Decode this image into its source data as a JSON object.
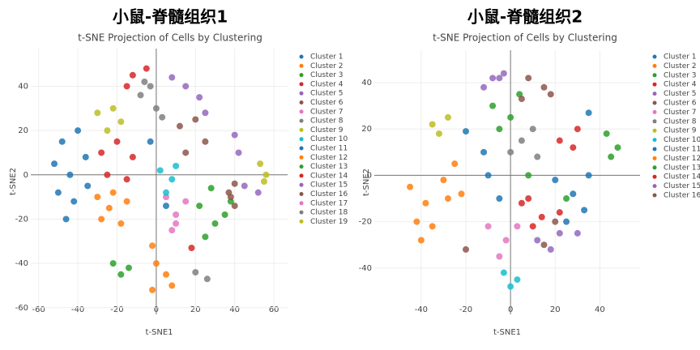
{
  "chart_data": [
    {
      "type": "scatter",
      "title": "小鼠-脊髓组织1",
      "subtitle": "t-SNE Projection of Cells by Clustering",
      "xlabel": "t-SNE1",
      "ylabel": "t-SNE2",
      "xlim": [
        -64,
        67
      ],
      "ylim": [
        -63,
        57
      ],
      "xticks": [
        -60,
        -40,
        -20,
        0,
        20,
        40,
        60
      ],
      "yticks": [
        -60,
        -40,
        -20,
        0,
        20,
        40
      ],
      "grid": true,
      "zeroline": true,
      "legend": "right",
      "series": [
        {
          "name": "Cluster 1",
          "color": "#1f77b4",
          "x": [
            -48,
            -40,
            -52,
            -44,
            -36,
            -50,
            -42,
            -35,
            -46
          ],
          "values": [
            15,
            20,
            5,
            0,
            8,
            -8,
            -12,
            -5,
            -20
          ]
        },
        {
          "name": "Cluster 2",
          "color": "#ff7f0e",
          "x": [
            -30,
            -22,
            -15,
            -28,
            -18,
            -24,
            0,
            5,
            -2,
            8
          ],
          "values": [
            -10,
            -8,
            -12,
            -20,
            -22,
            -15,
            -40,
            -45,
            -52,
            -50
          ]
        },
        {
          "name": "Cluster 3",
          "color": "#2ca02c",
          "x": [
            -22,
            -18,
            -14,
            30,
            25,
            35,
            38
          ],
          "values": [
            -40,
            -45,
            -42,
            -22,
            -28,
            -18,
            -12
          ]
        },
        {
          "name": "Cluster 4",
          "color": "#d62728",
          "x": [
            -28,
            -20,
            -12,
            -25,
            -15,
            -12,
            -5,
            -15
          ],
          "values": [
            10,
            15,
            8,
            0,
            -2,
            45,
            48,
            40
          ]
        },
        {
          "name": "Cluster 5",
          "color": "#9467bd",
          "x": [
            8,
            15,
            22,
            25,
            40,
            42,
            52
          ],
          "values": [
            44,
            40,
            35,
            28,
            18,
            10,
            -8
          ]
        },
        {
          "name": "Cluster 6",
          "color": "#8c564b",
          "x": [
            12,
            20,
            25,
            15,
            37,
            40
          ],
          "values": [
            22,
            25,
            15,
            10,
            -8,
            -14
          ]
        },
        {
          "name": "Cluster 7",
          "color": "#e377c2",
          "x": [
            5,
            10,
            8,
            15
          ],
          "values": [
            -10,
            -18,
            -25,
            -12
          ]
        },
        {
          "name": "Cluster 8",
          "color": "#7f7f7f",
          "x": [
            -8,
            0,
            -3,
            3,
            20,
            26
          ],
          "values": [
            36,
            30,
            40,
            26,
            -44,
            -47
          ]
        },
        {
          "name": "Cluster 9",
          "color": "#bcbd22",
          "x": [
            -30,
            -22,
            -25,
            -18
          ],
          "values": [
            28,
            30,
            20,
            24
          ]
        },
        {
          "name": "Cluster 10",
          "color": "#17becf",
          "x": [
            2,
            8,
            5,
            10
          ],
          "values": [
            2,
            -2,
            -8,
            4
          ]
        },
        {
          "name": "Cluster 11",
          "color": "#1f77b4",
          "x": [
            -3,
            5
          ],
          "values": [
            15,
            -14
          ]
        },
        {
          "name": "Cluster 12",
          "color": "#ff7f0e",
          "x": [
            -2
          ],
          "values": [
            -32
          ]
        },
        {
          "name": "Cluster 13",
          "color": "#2ca02c",
          "x": [
            22,
            28
          ],
          "values": [
            -14,
            -6
          ]
        },
        {
          "name": "Cluster 14",
          "color": "#d62728",
          "x": [
            18
          ],
          "values": [
            -33
          ]
        },
        {
          "name": "Cluster 15",
          "color": "#9467bd",
          "x": [
            45
          ],
          "values": [
            -5
          ]
        },
        {
          "name": "Cluster 16",
          "color": "#8c564b",
          "x": [
            38,
            40
          ],
          "values": [
            -10,
            -4
          ]
        },
        {
          "name": "Cluster 17",
          "color": "#e377c2",
          "x": [
            10
          ],
          "values": [
            -22
          ]
        },
        {
          "name": "Cluster 18",
          "color": "#7f7f7f",
          "x": [
            -6
          ],
          "values": [
            42
          ]
        },
        {
          "name": "Cluster 19",
          "color": "#bcbd22",
          "x": [
            53,
            56,
            55
          ],
          "values": [
            5,
            0,
            -3
          ]
        }
      ]
    },
    {
      "type": "scatter",
      "title": "小鼠-脊髓组织2",
      "subtitle": "t-SNE Projection of Cells by Clustering",
      "xlabel": "t-SNE1",
      "ylabel": "t-SNE2",
      "xlim": [
        -61,
        58
      ],
      "ylim": [
        -60,
        54
      ],
      "xticks": [
        -40,
        -20,
        0,
        20,
        40
      ],
      "yticks": [
        -40,
        -20,
        0,
        20,
        40
      ],
      "grid": true,
      "zeroline": true,
      "legend": "right",
      "series": [
        {
          "name": "Cluster 1",
          "color": "#1f77b4",
          "x": [
            20,
            28,
            33,
            25,
            35,
            -10,
            -5,
            -12
          ],
          "values": [
            -2,
            -8,
            -15,
            -20,
            0,
            0,
            -10,
            10
          ]
        },
        {
          "name": "Cluster 2",
          "color": "#ff7f0e",
          "x": [
            -45,
            -38,
            -30,
            -42,
            -35,
            -28,
            -25
          ],
          "values": [
            -5,
            -12,
            -2,
            -20,
            -22,
            -10,
            5
          ]
        },
        {
          "name": "Cluster 3",
          "color": "#2ca02c",
          "x": [
            -8,
            0,
            4,
            -5,
            43,
            48,
            45
          ],
          "values": [
            30,
            25,
            35,
            20,
            18,
            12,
            8
          ]
        },
        {
          "name": "Cluster 4",
          "color": "#d62728",
          "x": [
            22,
            28,
            30,
            8,
            14,
            10
          ],
          "values": [
            15,
            12,
            20,
            -10,
            -18,
            -22
          ]
        },
        {
          "name": "Cluster 5",
          "color": "#9467bd",
          "x": [
            -8,
            -12,
            -3,
            12,
            18,
            22
          ],
          "values": [
            42,
            38,
            44,
            -28,
            -32,
            -25
          ]
        },
        {
          "name": "Cluster 6",
          "color": "#8c564b",
          "x": [
            8,
            15,
            18,
            5,
            -20
          ],
          "values": [
            42,
            38,
            35,
            33,
            -32
          ]
        },
        {
          "name": "Cluster 7",
          "color": "#e377c2",
          "x": [
            -10,
            -2,
            -5,
            3
          ],
          "values": [
            -22,
            -28,
            -35,
            -22
          ]
        },
        {
          "name": "Cluster 8",
          "color": "#7f7f7f",
          "x": [
            5,
            10,
            0,
            12
          ],
          "values": [
            15,
            20,
            10,
            8
          ]
        },
        {
          "name": "Cluster 9",
          "color": "#bcbd22",
          "x": [
            -35,
            -28,
            -32
          ],
          "values": [
            22,
            25,
            18
          ]
        },
        {
          "name": "Cluster 10",
          "color": "#17becf",
          "x": [
            -3,
            3,
            0
          ],
          "values": [
            -42,
            -45,
            -48
          ]
        },
        {
          "name": "Cluster 11",
          "color": "#1f77b4",
          "x": [
            35,
            -20
          ],
          "values": [
            27,
            19
          ]
        },
        {
          "name": "Cluster 12",
          "color": "#ff7f0e",
          "x": [
            -22,
            -40
          ],
          "values": [
            -8,
            -28
          ]
        },
        {
          "name": "Cluster 13",
          "color": "#2ca02c",
          "x": [
            8,
            25
          ],
          "values": [
            0,
            -10
          ]
        },
        {
          "name": "Cluster 14",
          "color": "#d62728",
          "x": [
            22,
            5
          ],
          "values": [
            -16,
            -12
          ]
        },
        {
          "name": "Cluster 15",
          "color": "#9467bd",
          "x": [
            30,
            -5
          ],
          "values": [
            -25,
            42
          ]
        },
        {
          "name": "Cluster 16",
          "color": "#8c564b",
          "x": [
            15,
            20
          ],
          "values": [
            -30,
            -20
          ]
        }
      ]
    }
  ]
}
